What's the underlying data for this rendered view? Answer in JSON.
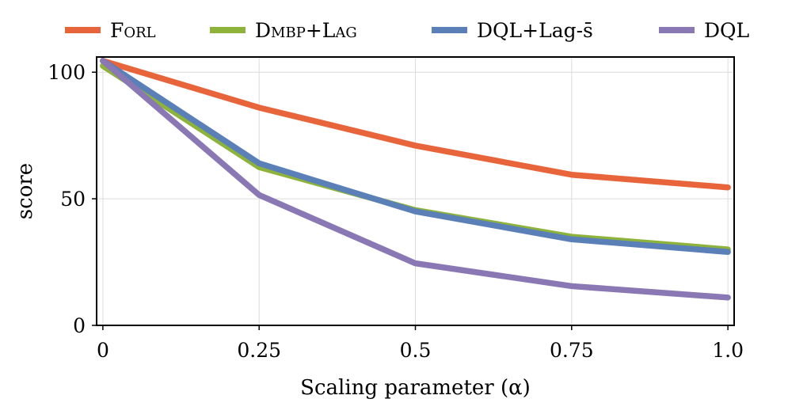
{
  "chart_data": {
    "type": "line",
    "title": "",
    "xlabel": "Scaling parameter (α)",
    "ylabel": "score",
    "x": [
      0,
      0.25,
      0.5,
      0.75,
      1.0
    ],
    "x_tick_labels": [
      "0",
      "0.25",
      "0.5",
      "0.75",
      "1.0"
    ],
    "y_ticks": [
      0,
      50,
      100
    ],
    "y_tick_labels": [
      "0",
      "50",
      "100"
    ],
    "xlim": [
      -0.01,
      1.01
    ],
    "ylim": [
      0,
      106
    ],
    "grid": true,
    "legend_position": "top",
    "series": [
      {
        "name": "Forl",
        "color": "#e8643a",
        "values": [
          104.5,
          86,
          71,
          59.5,
          54.5
        ]
      },
      {
        "name": "Dmbp+Lag",
        "color": "#8db33a",
        "values": [
          102.5,
          62.5,
          45.5,
          35,
          30
        ]
      },
      {
        "name": "DQL+Lag-s̄",
        "color": "#5b80b8",
        "values": [
          104.5,
          64,
          45,
          34,
          29
        ]
      },
      {
        "name": "DQL",
        "color": "#8a78b5",
        "values": [
          104.5,
          51.5,
          24.5,
          15.5,
          11
        ]
      }
    ]
  }
}
